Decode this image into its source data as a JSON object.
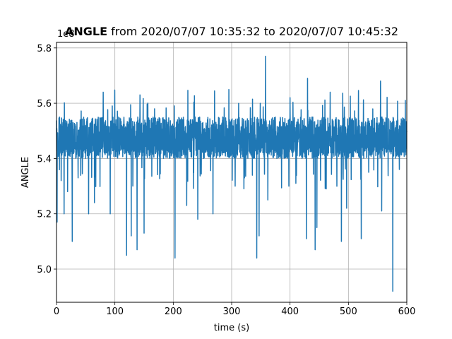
{
  "chart_data": {
    "type": "line",
    "title_bold": "ANGLE",
    "title_rest": " from 2020/07/07 10:35:32 to 2020/07/07 10:45:32",
    "xlabel": "time (s)",
    "ylabel": "ANGLE",
    "y_offset_label": "1e8",
    "xlim": [
      0,
      600
    ],
    "ylim": [
      4.88,
      5.82
    ],
    "x_ticks": [
      0,
      100,
      200,
      300,
      400,
      500,
      600
    ],
    "x_tick_labels": [
      "0",
      "100",
      "200",
      "300",
      "400",
      "500",
      "600"
    ],
    "y_ticks": [
      5.0,
      5.2,
      5.4,
      5.6,
      5.8
    ],
    "y_tick_labels": [
      "5.0",
      "5.2",
      "5.4",
      "5.6",
      "5.8"
    ],
    "grid": true,
    "series": [
      {
        "color": "#1f77b4",
        "baseline": 5.47,
        "band_low": 5.4,
        "band_high": 5.55,
        "spikes": [
          {
            "x": 1,
            "y": 5.17
          },
          {
            "x": 8,
            "y": 5.32
          },
          {
            "x": 13,
            "y": 5.2
          },
          {
            "x": 19,
            "y": 5.28
          },
          {
            "x": 27,
            "y": 5.1
          },
          {
            "x": 37,
            "y": 5.33
          },
          {
            "x": 55,
            "y": 5.2
          },
          {
            "x": 65,
            "y": 5.24
          },
          {
            "x": 80,
            "y": 5.64
          },
          {
            "x": 92,
            "y": 5.2
          },
          {
            "x": 120,
            "y": 5.05
          },
          {
            "x": 128,
            "y": 5.12
          },
          {
            "x": 138,
            "y": 5.07
          },
          {
            "x": 150,
            "y": 5.13
          },
          {
            "x": 143,
            "y": 5.63
          },
          {
            "x": 168,
            "y": 5.58
          },
          {
            "x": 203,
            "y": 5.04
          },
          {
            "x": 223,
            "y": 5.23
          },
          {
            "x": 242,
            "y": 5.18
          },
          {
            "x": 268,
            "y": 5.2
          },
          {
            "x": 306,
            "y": 5.3
          },
          {
            "x": 322,
            "y": 5.33
          },
          {
            "x": 343,
            "y": 5.04
          },
          {
            "x": 347,
            "y": 5.12
          },
          {
            "x": 358,
            "y": 5.77
          },
          {
            "x": 362,
            "y": 5.25
          },
          {
            "x": 398,
            "y": 5.3
          },
          {
            "x": 400,
            "y": 5.62
          },
          {
            "x": 410,
            "y": 5.31
          },
          {
            "x": 428,
            "y": 5.11
          },
          {
            "x": 430,
            "y": 5.69
          },
          {
            "x": 443,
            "y": 5.07
          },
          {
            "x": 446,
            "y": 5.15
          },
          {
            "x": 462,
            "y": 5.29
          },
          {
            "x": 488,
            "y": 5.1
          },
          {
            "x": 497,
            "y": 5.22
          },
          {
            "x": 522,
            "y": 5.11
          },
          {
            "x": 555,
            "y": 5.68
          },
          {
            "x": 557,
            "y": 5.21
          },
          {
            "x": 576,
            "y": 4.92
          }
        ]
      }
    ]
  }
}
